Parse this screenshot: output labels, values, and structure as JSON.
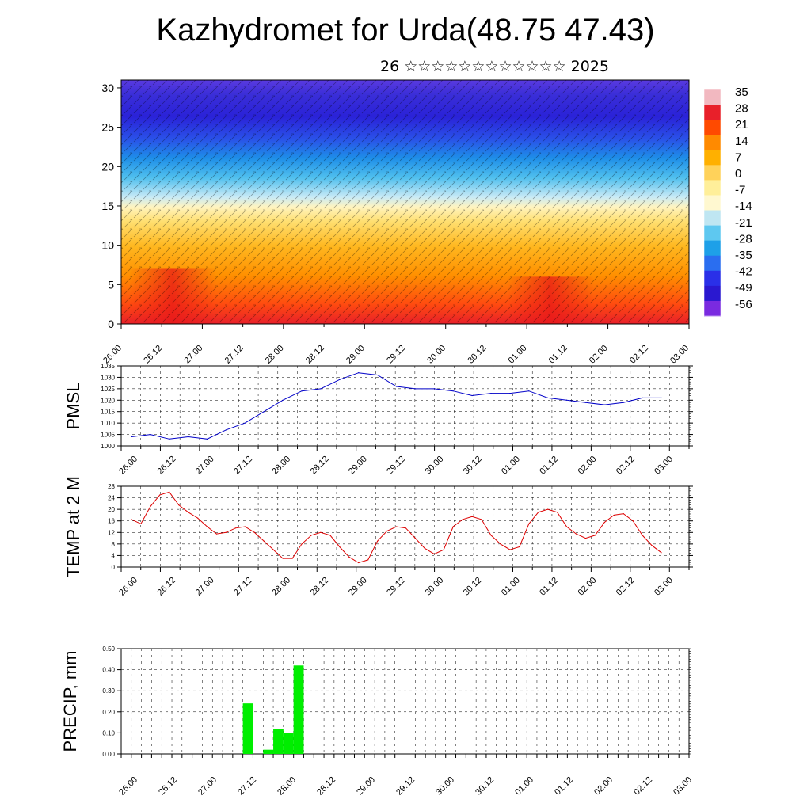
{
  "page": {
    "title": "Kazhydromet for Urda(48.75 47.43)",
    "subtitle": "26 ☆☆☆☆☆☆☆☆☆☆☆☆ 2025"
  },
  "time_labels": [
    "26.00",
    "26.12",
    "27.00",
    "27.12",
    "28.00",
    "28.12",
    "29.00",
    "29.12",
    "30.00",
    "30.12",
    "01.00",
    "01.12",
    "02.00",
    "02.12",
    "03.00"
  ],
  "chart_data": [
    {
      "id": "cross-section",
      "type": "heatmap",
      "ylabel": "",
      "yticks": [
        0,
        5,
        10,
        15,
        20,
        25,
        30
      ],
      "ylim": [
        0,
        31
      ],
      "xticks": [
        "26.00",
        "26.12",
        "27.00",
        "27.12",
        "28.00",
        "28.12",
        "29.00",
        "29.12",
        "30.00",
        "30.12",
        "01.00",
        "01.12",
        "02.00",
        "02.12",
        "03.00"
      ],
      "colorbar_labels": [
        "35",
        "28",
        "21",
        "14",
        "7",
        "0",
        "-7",
        "-14",
        "-21",
        "-28",
        "-35",
        "-42",
        "-49",
        "-56"
      ],
      "colorbar_colors": [
        "#f2b8c0",
        "#e8202a",
        "#ff4a00",
        "#ff8a00",
        "#ffb000",
        "#ffd25a",
        "#ffef9a",
        "#fff8d0",
        "#bfe6f2",
        "#5ec8f0",
        "#1ea0e8",
        "#2a6ef0",
        "#2a30e8",
        "#2a18d0",
        "#7a2ae0"
      ],
      "grid": false
    },
    {
      "id": "pmsl",
      "type": "line",
      "ylabel": "PMSL",
      "ylim": [
        1000,
        1035
      ],
      "yticks": [
        1000,
        1005,
        1010,
        1015,
        1020,
        1025,
        1030,
        1035
      ],
      "color": "#0000c8",
      "grid": true,
      "x": [
        0,
        1,
        2,
        3,
        4,
        5,
        6,
        7,
        8,
        9,
        10,
        11,
        12,
        13,
        14,
        15,
        16,
        17,
        18,
        19,
        20,
        21,
        22,
        23,
        24,
        25,
        26,
        27,
        28
      ],
      "values": [
        1004,
        1005,
        1003,
        1004,
        1003,
        1007,
        1010,
        1015,
        1020,
        1024,
        1025,
        1029,
        1032,
        1031,
        1026,
        1025,
        1025,
        1024,
        1022,
        1023,
        1023,
        1024,
        1021,
        1020,
        1019,
        1018,
        1019,
        1021,
        1021
      ]
    },
    {
      "id": "temp",
      "type": "line",
      "ylabel": "TEMP at 2 M",
      "ylim": [
        0,
        28
      ],
      "yticks": [
        0,
        4,
        8,
        12,
        16,
        20,
        24,
        28
      ],
      "color": "#dd0000",
      "grid": true,
      "x": [
        0,
        1,
        2,
        3,
        4,
        5,
        6,
        7,
        8,
        9,
        10,
        11,
        12,
        13,
        14,
        15,
        16,
        17,
        18,
        19,
        20,
        21,
        22,
        23,
        24,
        25,
        26,
        27,
        28,
        29,
        30,
        31,
        32,
        33,
        34,
        35,
        36,
        37,
        38,
        39,
        40,
        41,
        42,
        43,
        44,
        45,
        46,
        47,
        48,
        49,
        50,
        51,
        52,
        53,
        54,
        55,
        56
      ],
      "values": [
        16.5,
        15,
        21,
        25,
        26,
        21.5,
        19,
        17,
        14,
        11.5,
        12,
        13.5,
        14,
        12,
        9,
        6,
        3,
        3,
        8,
        11,
        12,
        11,
        7,
        3.5,
        1.5,
        2.5,
        9,
        12.5,
        14,
        13.5,
        10,
        6.5,
        4.5,
        6,
        14,
        16.5,
        17.5,
        16.5,
        11,
        8,
        6,
        7,
        15,
        19,
        20,
        19,
        14,
        11.5,
        10,
        11,
        15.5,
        18,
        18.5,
        16,
        11,
        7.5,
        5
      ]
    },
    {
      "id": "precip",
      "type": "bar",
      "ylabel": "PRECIP, mm",
      "ylim": [
        0,
        0.5
      ],
      "ytick_labels": [
        "0.00",
        "0.10",
        "0.20",
        "0.30",
        "0.40",
        "0.50"
      ],
      "color": "#00ee00",
      "grid": true,
      "x": [
        5,
        7,
        8,
        9,
        10
      ],
      "values": [
        0.24,
        0.02,
        0.12,
        0.1,
        0.42
      ]
    }
  ]
}
